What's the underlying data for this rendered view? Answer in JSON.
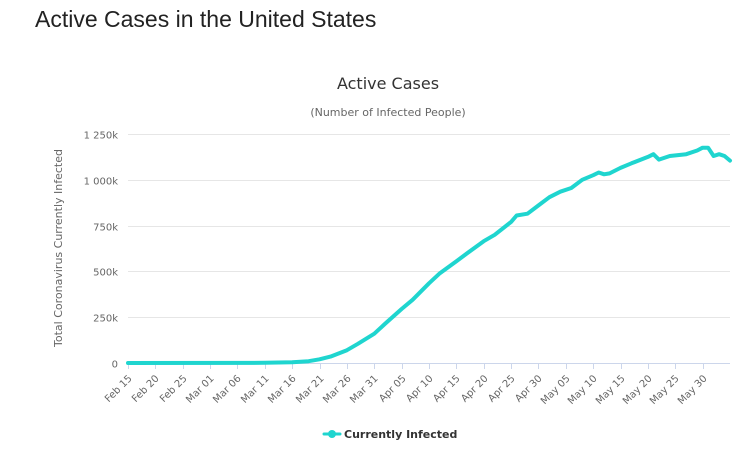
{
  "page": {
    "title": "Active Cases in the United States"
  },
  "chart_data": {
    "type": "line",
    "title": "Active Cases",
    "subtitle": "(Number of Infected People)",
    "xlabel": "",
    "ylabel": "Total Coronavirus Currently Infected",
    "ylim": [
      0,
      1250000
    ],
    "y_ticks": [
      0,
      250000,
      500000,
      750000,
      1000000,
      1250000
    ],
    "y_tick_labels": [
      "0",
      "250k",
      "500k",
      "750k",
      "1 000k",
      "1 250k"
    ],
    "x_tick_labels": [
      "Feb 15",
      "Feb 20",
      "Feb 25",
      "Mar 01",
      "Mar 06",
      "Mar 11",
      "Mar 16",
      "Mar 21",
      "Mar 26",
      "Mar 31",
      "Apr 05",
      "Apr 10",
      "Apr 15",
      "Apr 20",
      "Apr 25",
      "Apr 30",
      "May 05",
      "May 10",
      "May 15",
      "May 20",
      "May 25",
      "May 30"
    ],
    "grid": true,
    "legend_position": "bottom-center",
    "series": [
      {
        "name": "Currently Infected",
        "color": "#1fd5cf",
        "points": [
          [
            "Feb 15",
            0
          ],
          [
            "Mar 11",
            1000
          ],
          [
            "Mar 16",
            4000
          ],
          [
            "Mar 19",
            10000
          ],
          [
            "Mar 21",
            20000
          ],
          [
            "Mar 23",
            35000
          ],
          [
            "Mar 26",
            70000
          ],
          [
            "Mar 28",
            105000
          ],
          [
            "Mar 31",
            160000
          ],
          [
            "Apr 02",
            215000
          ],
          [
            "Apr 05",
            295000
          ],
          [
            "Apr 07",
            345000
          ],
          [
            "Apr 10",
            435000
          ],
          [
            "Apr 12",
            490000
          ],
          [
            "Apr 15",
            555000
          ],
          [
            "Apr 17",
            600000
          ],
          [
            "Apr 20",
            665000
          ],
          [
            "Apr 22",
            700000
          ],
          [
            "Apr 25",
            770000
          ],
          [
            "Apr 26",
            805000
          ],
          [
            "Apr 28",
            815000
          ],
          [
            "Apr 30",
            860000
          ],
          [
            "May 02",
            905000
          ],
          [
            "May 04",
            935000
          ],
          [
            "May 06",
            955000
          ],
          [
            "May 08",
            1000000
          ],
          [
            "May 10",
            1025000
          ],
          [
            "May 11",
            1040000
          ],
          [
            "May 12",
            1030000
          ],
          [
            "May 13",
            1035000
          ],
          [
            "May 15",
            1065000
          ],
          [
            "May 17",
            1090000
          ],
          [
            "May 20",
            1125000
          ],
          [
            "May 21",
            1140000
          ],
          [
            "May 22",
            1110000
          ],
          [
            "May 24",
            1130000
          ],
          [
            "May 27",
            1140000
          ],
          [
            "May 29",
            1160000
          ],
          [
            "May 30",
            1175000
          ],
          [
            "May 31",
            1175000
          ],
          [
            "Jun 01",
            1130000
          ],
          [
            "Jun 02",
            1140000
          ],
          [
            "Jun 03",
            1130000
          ],
          [
            "Jun 04",
            1105000
          ]
        ]
      }
    ]
  }
}
